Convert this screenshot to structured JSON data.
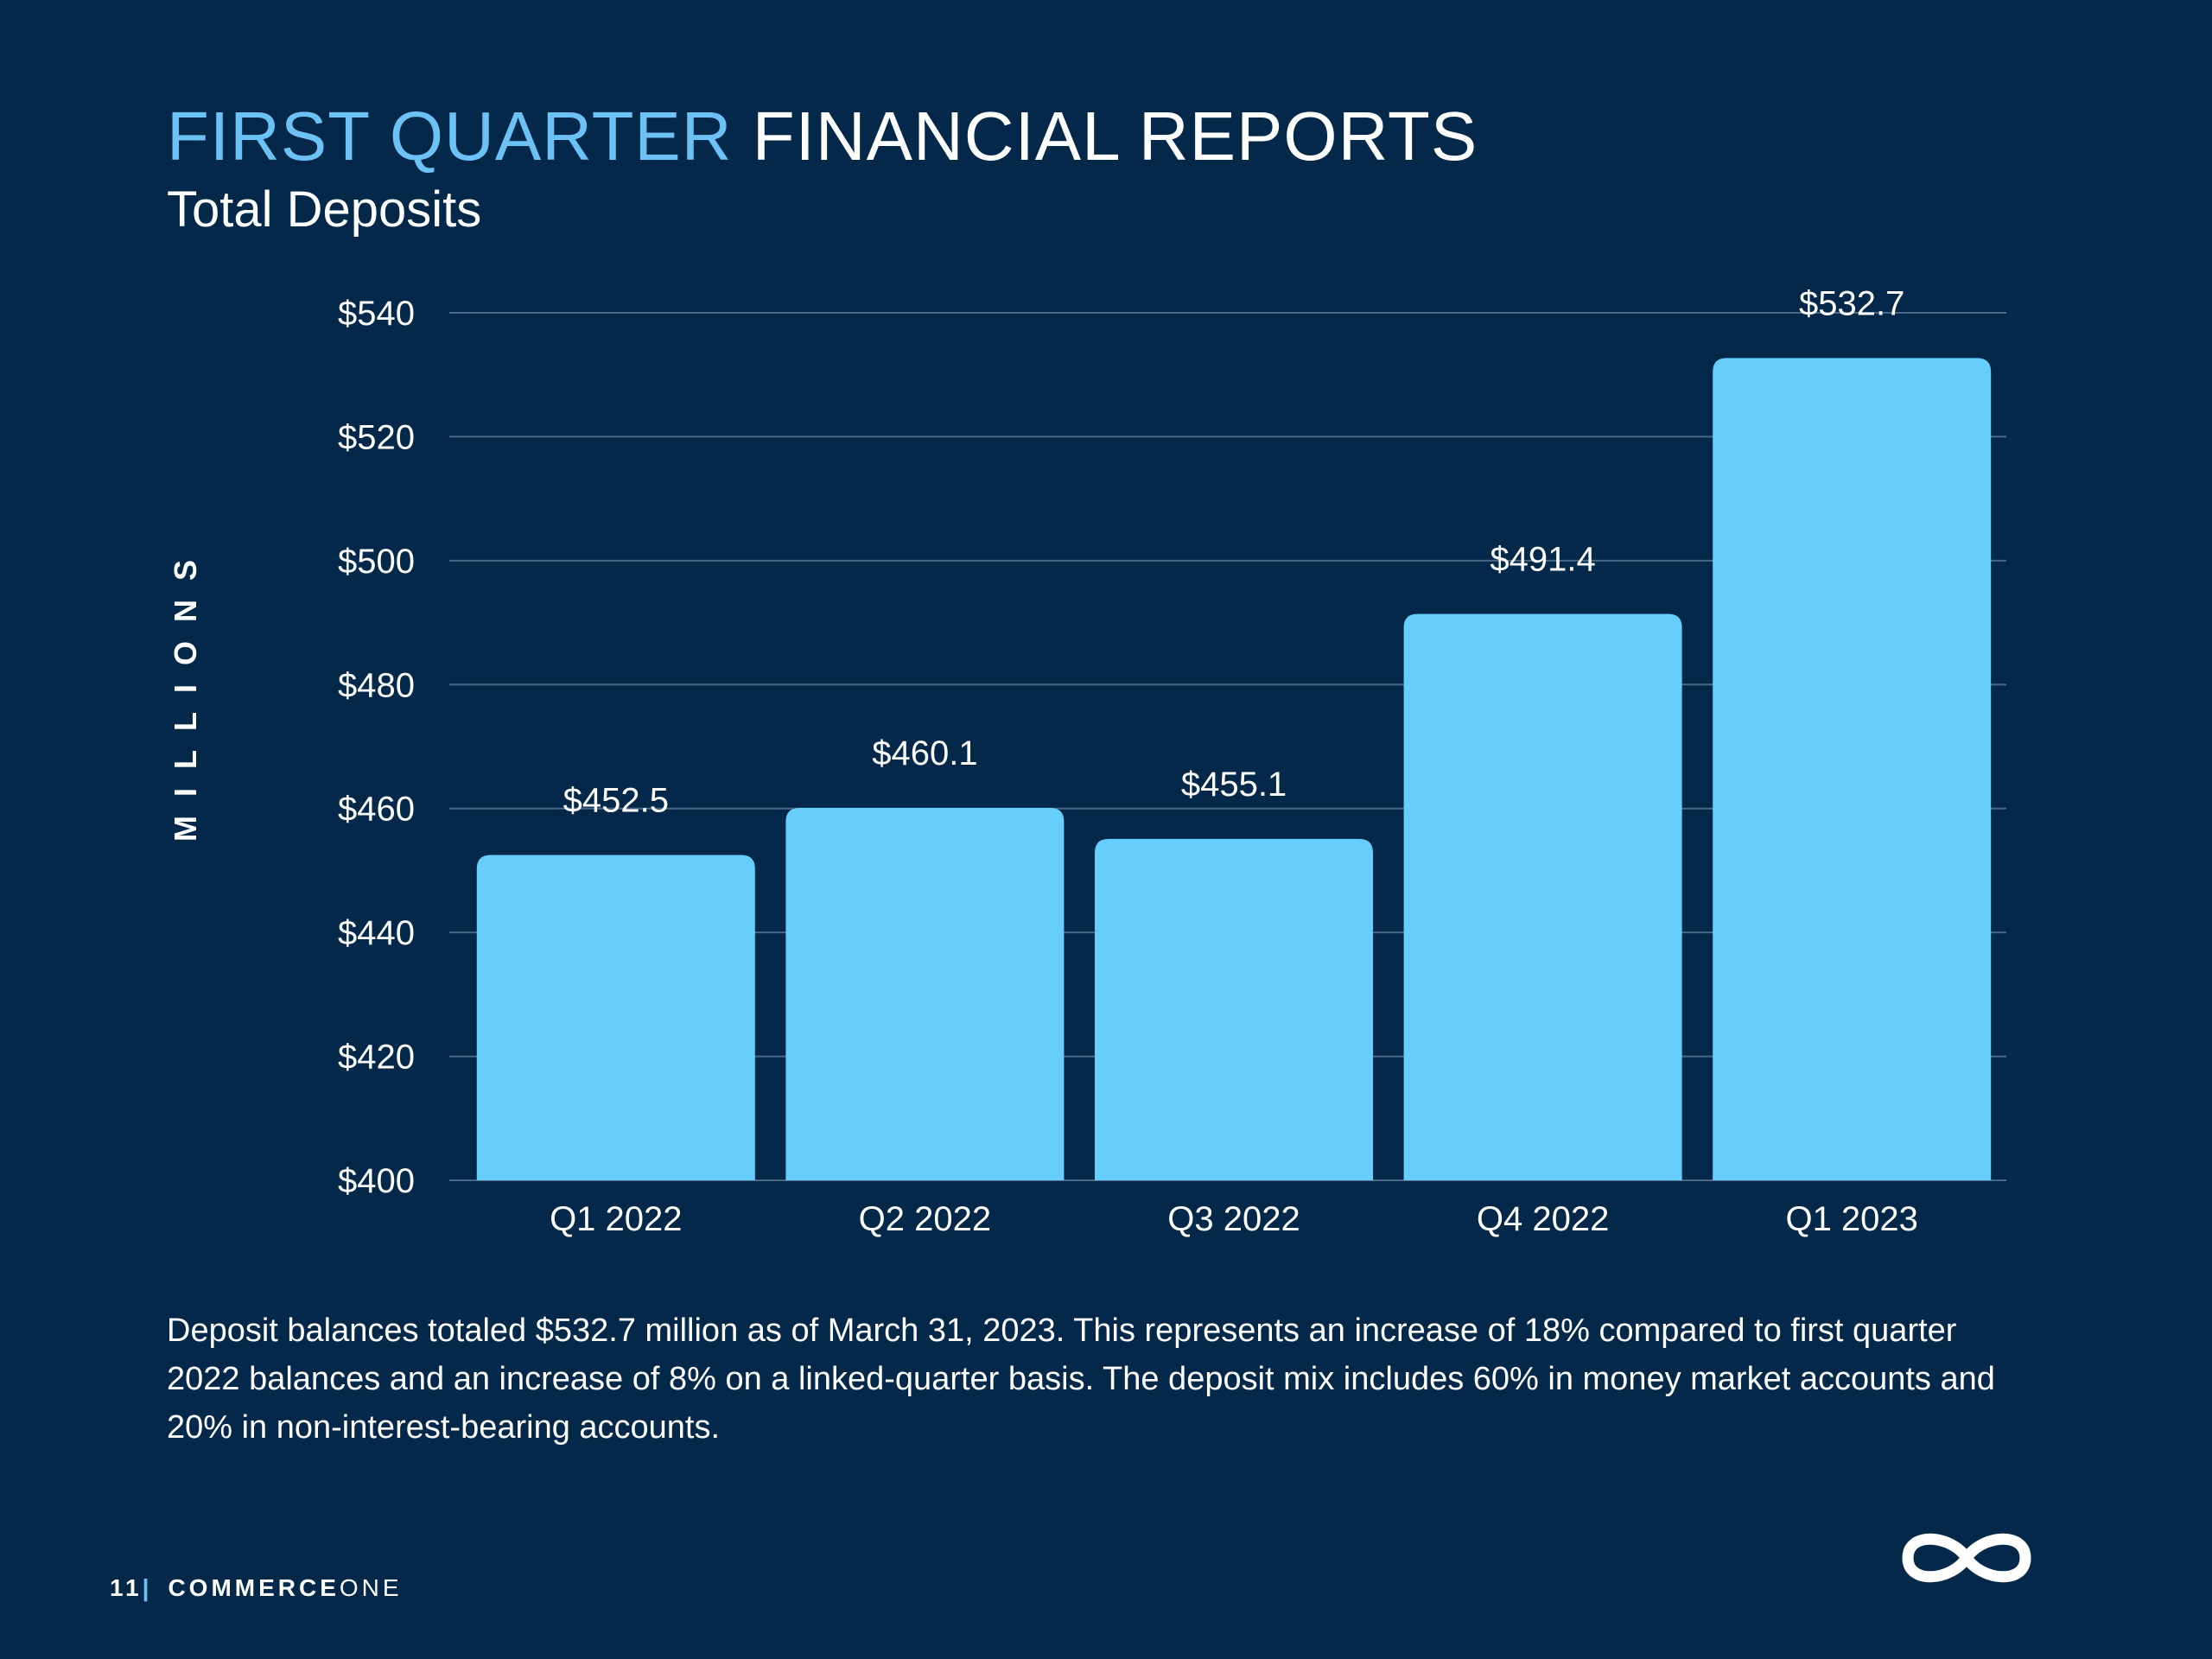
{
  "header": {
    "title_accent": "FIRST QUARTER",
    "title_rest": "FINANCIAL REPORTS",
    "subtitle": "Total Deposits"
  },
  "chart_data": {
    "type": "bar",
    "title": "",
    "xlabel": "",
    "ylabel": "MILLIONS",
    "categories": [
      "Q1 2022",
      "Q2 2022",
      "Q3 2022",
      "Q4 2022",
      "Q1 2023"
    ],
    "values": [
      452.5,
      460.1,
      455.1,
      491.4,
      532.7
    ],
    "value_labels": [
      "$452.5",
      "$460.1",
      "$455.1",
      "$491.4",
      "$532.7"
    ],
    "ylim": [
      400,
      540
    ],
    "yticks": [
      400,
      420,
      440,
      460,
      480,
      500,
      520,
      540
    ],
    "ytick_labels": [
      "$400",
      "$420",
      "$440",
      "$460",
      "$480",
      "$500",
      "$520",
      "$540"
    ],
    "grid": true,
    "legend": "none",
    "colors": {
      "bar": "#66cdfd",
      "grid": "#4a6885",
      "background": "#03284a"
    }
  },
  "description": "Deposit balances totaled $532.7 million as of March 31, 2023. This represents an increase of 18% compared to first quarter 2022 balances and an increase of 8% on a linked-quarter basis. The deposit mix includes 60% in money market accounts and 20% in non-interest-bearing accounts.",
  "footer": {
    "page_number": "11",
    "separator": "|",
    "brand_bold": "COMMERCE",
    "brand_light": "ONE"
  },
  "logo": {
    "icon": "infinity-icon"
  },
  "colors": {
    "background": "#03284a",
    "accent": "#6cc2f4",
    "text": "#ffffff"
  }
}
